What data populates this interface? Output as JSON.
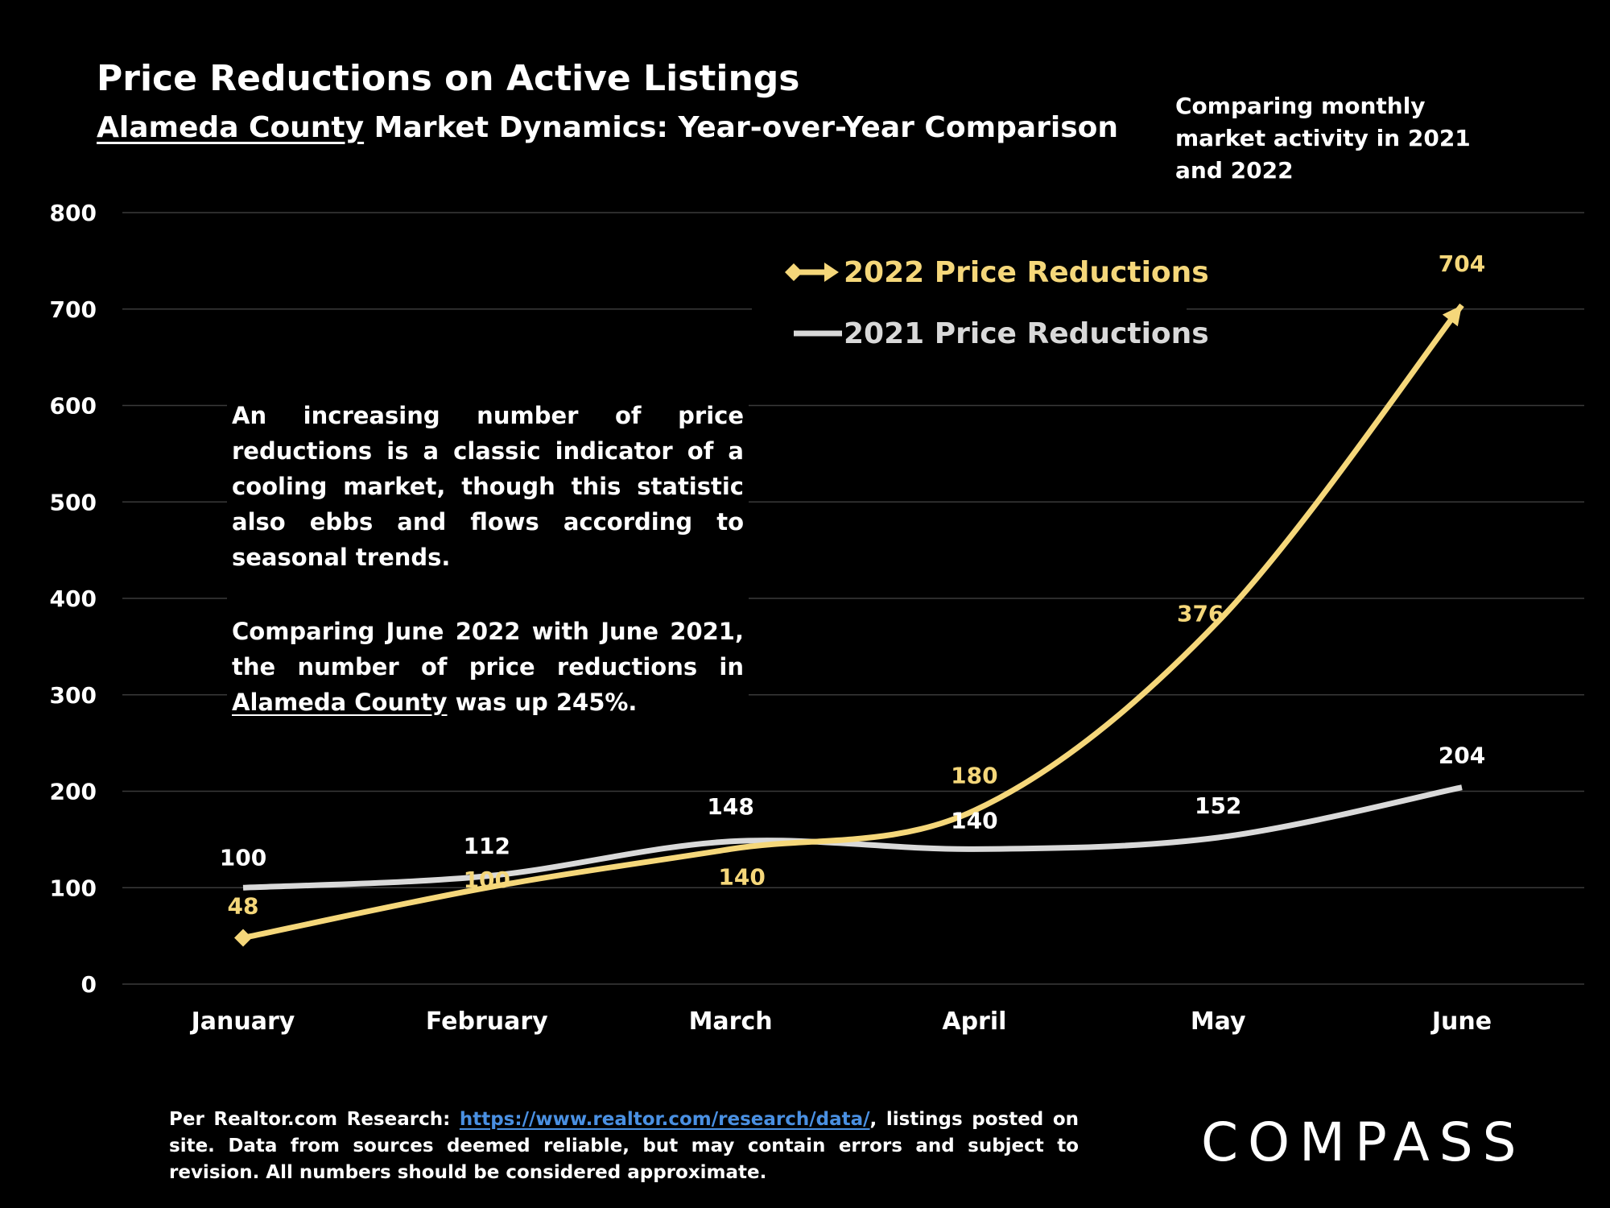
{
  "header": {
    "title": "Price Reductions on Active Listings",
    "subtitle_underlined": "Alameda County",
    "subtitle_rest": " Market Dynamics: Year-over-Year Comparison",
    "side_note": "Comparing monthly market activity in 2021 and 2022"
  },
  "annotation": {
    "para1": "An increasing number of price reductions is a classic indicator of a cooling market, though this statistic also ebbs and flows according to seasonal trends.",
    "para2_start": "Comparing June 2022 with June 2021, the number of price reductions in ",
    "para2_link": "Alameda County",
    "para2_end": " was up 245%."
  },
  "footer": {
    "source_prefix": "Per Realtor.com Research: ",
    "source_url": "https://www.realtor.com/research/data/",
    "source_suffix": ", listings posted on site. Data from sources deemed reliable, but may contain errors and subject to revision. All numbers should be considered approximate."
  },
  "logo": {
    "text": "COMPASS"
  },
  "chart_data": {
    "type": "line",
    "categories": [
      "January",
      "February",
      "March",
      "April",
      "May",
      "June"
    ],
    "ylim": [
      0,
      800
    ],
    "yticks": [
      0,
      100,
      200,
      300,
      400,
      500,
      600,
      700,
      800
    ],
    "grid": true,
    "legend_position": "top-center",
    "series": [
      {
        "name": "2022 Price Reductions",
        "values": [
          48,
          100,
          140,
          180,
          376,
          704
        ],
        "color": "#f5d77a",
        "marker": "diamond-start-arrow-end"
      },
      {
        "name": "2021 Price Reductions",
        "values": [
          100,
          112,
          148,
          140,
          152,
          204
        ],
        "color": "#d9d9d9",
        "marker": "none"
      }
    ]
  }
}
